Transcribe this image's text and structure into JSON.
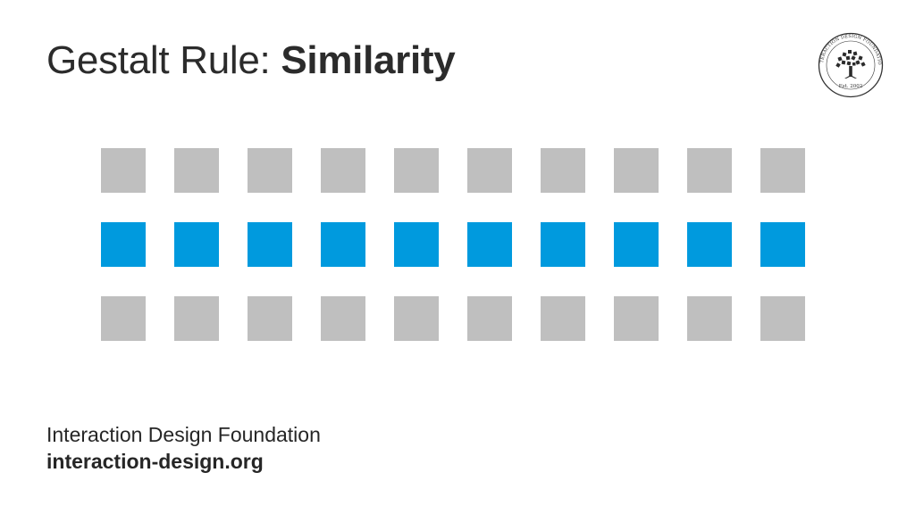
{
  "title": {
    "prefix": "Gestalt Rule: ",
    "emphasis": "Similarity"
  },
  "logo": {
    "ring_text": "INTERACTION DESIGN FOUNDATION",
    "established": "Est. 2002",
    "icon": "tree-icon"
  },
  "grid": {
    "columns": 10,
    "rows": [
      {
        "kind": "gray",
        "color": "#bfbfbf"
      },
      {
        "kind": "blue",
        "color": "#009ade"
      },
      {
        "kind": "gray",
        "color": "#bfbfbf"
      }
    ]
  },
  "footer": {
    "organization": "Interaction Design Foundation",
    "website": "interaction-design.org"
  }
}
